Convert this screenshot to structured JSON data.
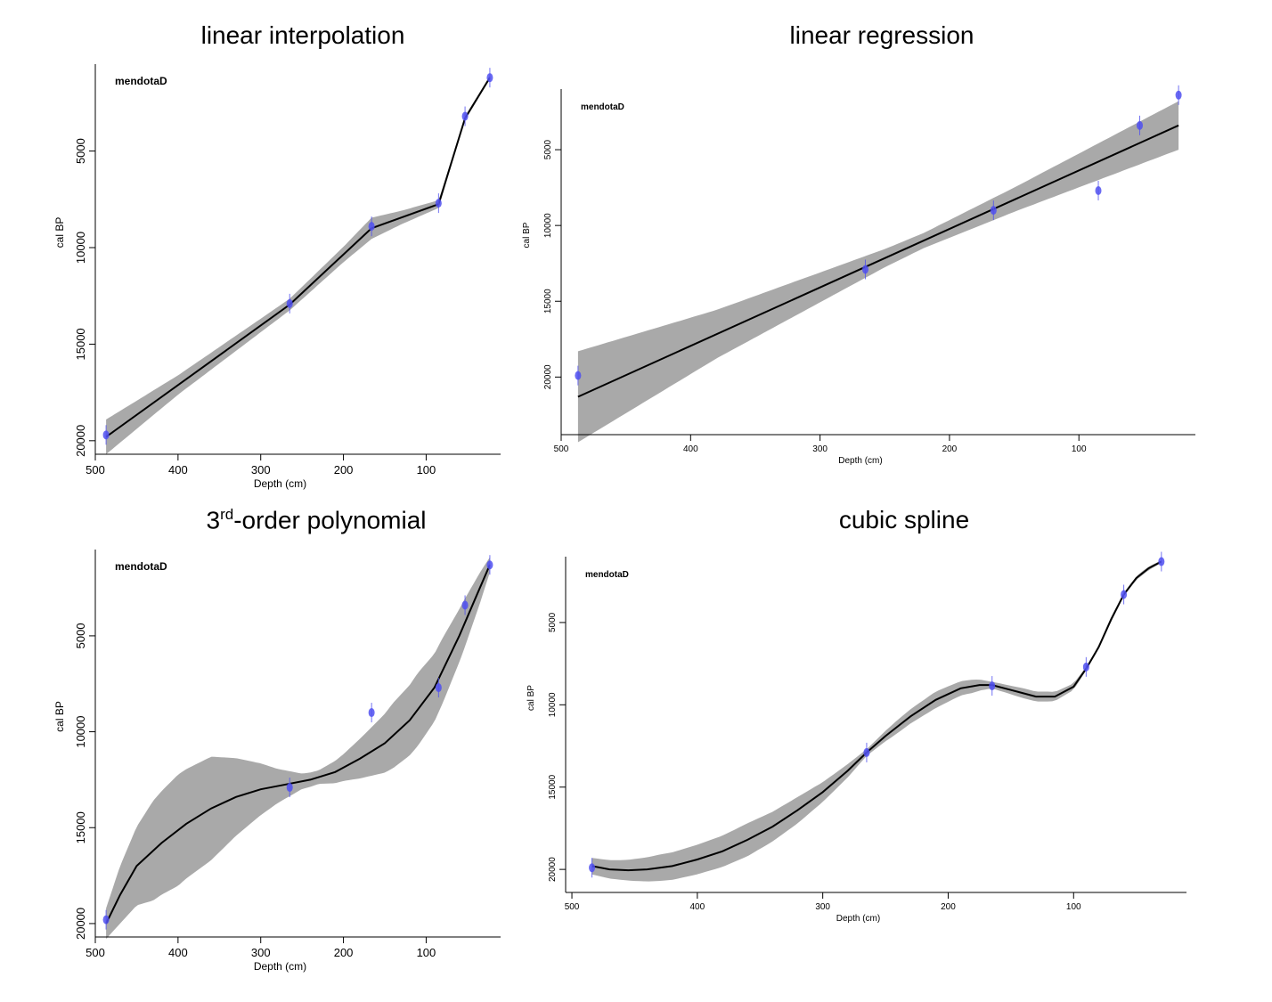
{
  "charts": {
    "titles": {
      "linear": "linear interpolation",
      "regression": "linear regression",
      "poly_num": "3",
      "poly_sup": "rd",
      "poly_rest": "-order polynomial",
      "spline": "cubic spline"
    }
  },
  "colors": {
    "band": "#a9a9a9",
    "line": "#000000",
    "date": "#5050f0"
  },
  "chart_data": [
    {
      "type": "line",
      "title": "linear interpolation",
      "label": "mendotaD",
      "xlabel": "Depth (cm)",
      "ylabel": "cal BP",
      "xlim": [
        500,
        10
      ],
      "ylim": [
        20700,
        500
      ],
      "x_ticks": [
        500,
        400,
        300,
        200,
        100
      ],
      "y_ticks": [
        5000,
        10000,
        15000,
        20000
      ],
      "dates": [
        {
          "depth": 487,
          "age": 19700
        },
        {
          "depth": 265,
          "age": 12900
        },
        {
          "depth": 166,
          "age": 8900
        },
        {
          "depth": 85,
          "age": 7700
        },
        {
          "depth": 53,
          "age": 3200
        },
        {
          "depth": 23,
          "age": 1200
        }
      ],
      "series": [
        {
          "values": [
            [
              487,
              19800
            ],
            [
              265,
              12950
            ],
            [
              166,
              9000
            ],
            [
              85,
              7750
            ],
            [
              53,
              3300
            ],
            [
              23,
              1200
            ]
          ]
        }
      ],
      "band": {
        "widths": [
          [
            487,
            900
          ],
          [
            400,
            500
          ],
          [
            300,
            350
          ],
          [
            265,
            300
          ],
          [
            200,
            400
          ],
          [
            166,
            550
          ],
          [
            130,
            350
          ],
          [
            85,
            200
          ],
          [
            60,
            120
          ],
          [
            23,
            80
          ]
        ]
      }
    },
    {
      "type": "line",
      "title": "linear regression",
      "label": "mendotaD",
      "xlabel": "Depth (cm)",
      "ylabel": "cal BP",
      "xlim": [
        500,
        10
      ],
      "ylim": [
        23800,
        1000
      ],
      "x_ticks": [
        500,
        400,
        300,
        200,
        100
      ],
      "y_ticks": [
        5000,
        10000,
        15000,
        20000
      ],
      "dates": [
        {
          "depth": 487,
          "age": 19900
        },
        {
          "depth": 265,
          "age": 12900
        },
        {
          "depth": 166,
          "age": 9000
        },
        {
          "depth": 85,
          "age": 7700
        },
        {
          "depth": 53,
          "age": 3400
        },
        {
          "depth": 23,
          "age": 1400
        }
      ],
      "series": [
        {
          "values": [
            [
              487,
              21300
            ],
            [
              23,
              3400
            ]
          ]
        }
      ],
      "band": {
        "widths": [
          [
            487,
            3000
          ],
          [
            380,
            1600
          ],
          [
            250,
            600
          ],
          [
            220,
            500
          ],
          [
            150,
            800
          ],
          [
            23,
            1600
          ]
        ]
      }
    },
    {
      "type": "line",
      "title": "3rd-order polynomial",
      "label": "mendotaD",
      "xlabel": "Depth (cm)",
      "ylabel": "cal BP",
      "xlim": [
        500,
        10
      ],
      "ylim": [
        20700,
        500
      ],
      "x_ticks": [
        500,
        400,
        300,
        200,
        100
      ],
      "y_ticks": [
        5000,
        10000,
        15000,
        20000
      ],
      "dates": [
        {
          "depth": 487,
          "age": 19800
        },
        {
          "depth": 265,
          "age": 12900
        },
        {
          "depth": 166,
          "age": 9000
        },
        {
          "depth": 85,
          "age": 7700
        },
        {
          "depth": 53,
          "age": 3400
        },
        {
          "depth": 23,
          "age": 1300
        }
      ],
      "series": [
        {
          "values": [
            [
              487,
              20000
            ],
            [
              470,
              18500
            ],
            [
              450,
              17000
            ],
            [
              420,
              15800
            ],
            [
              390,
              14800
            ],
            [
              360,
              14000
            ],
            [
              330,
              13400
            ],
            [
              300,
              13000
            ],
            [
              270,
              12750
            ],
            [
              240,
              12500
            ],
            [
              210,
              12100
            ],
            [
              180,
              11400
            ],
            [
              150,
              10600
            ],
            [
              120,
              9400
            ],
            [
              90,
              7700
            ],
            [
              60,
              5000
            ],
            [
              40,
              3000
            ],
            [
              23,
              1300
            ]
          ]
        }
      ],
      "band": {
        "widths": [
          [
            487,
            800
          ],
          [
            470,
            1500
          ],
          [
            430,
            2600
          ],
          [
            400,
            2900
          ],
          [
            360,
            2700
          ],
          [
            320,
            1800
          ],
          [
            280,
            900
          ],
          [
            250,
            400
          ],
          [
            230,
            350
          ],
          [
            200,
            700
          ],
          [
            170,
            1200
          ],
          [
            140,
            1700
          ],
          [
            110,
            1900
          ],
          [
            80,
            1700
          ],
          [
            55,
            1300
          ],
          [
            35,
            800
          ],
          [
            23,
            400
          ]
        ]
      }
    },
    {
      "type": "line",
      "title": "cubic spline",
      "label": "mendotaD",
      "xlabel": "Depth (cm)",
      "ylabel": "cal BP",
      "xlim": [
        505,
        10
      ],
      "ylim": [
        21400,
        1000
      ],
      "x_ticks": [
        500,
        400,
        300,
        200,
        100
      ],
      "y_ticks": [
        5000,
        10000,
        15000,
        20000
      ],
      "dates": [
        {
          "depth": 484,
          "age": 19900
        },
        {
          "depth": 265,
          "age": 12900
        },
        {
          "depth": 165,
          "age": 8850
        },
        {
          "depth": 90,
          "age": 7700
        },
        {
          "depth": 60,
          "age": 3300
        },
        {
          "depth": 30,
          "age": 1300
        }
      ],
      "series": [
        {
          "values": [
            [
              484,
              19800
            ],
            [
              470,
              20000
            ],
            [
              455,
              20050
            ],
            [
              440,
              20000
            ],
            [
              420,
              19800
            ],
            [
              400,
              19400
            ],
            [
              380,
              18900
            ],
            [
              360,
              18200
            ],
            [
              340,
              17400
            ],
            [
              320,
              16400
            ],
            [
              300,
              15300
            ],
            [
              280,
              14000
            ],
            [
              265,
              12900
            ],
            [
              250,
              11900
            ],
            [
              230,
              10700
            ],
            [
              210,
              9700
            ],
            [
              190,
              9000
            ],
            [
              175,
              8800
            ],
            [
              165,
              8800
            ],
            [
              150,
              9100
            ],
            [
              130,
              9500
            ],
            [
              115,
              9500
            ],
            [
              100,
              8900
            ],
            [
              90,
              7800
            ],
            [
              80,
              6500
            ],
            [
              70,
              4800
            ],
            [
              60,
              3300
            ],
            [
              50,
              2300
            ],
            [
              40,
              1700
            ],
            [
              30,
              1300
            ]
          ]
        }
      ],
      "band": {
        "widths": [
          [
            484,
            500
          ],
          [
            460,
            600
          ],
          [
            430,
            800
          ],
          [
            400,
            900
          ],
          [
            360,
            1000
          ],
          [
            320,
            800
          ],
          [
            280,
            400
          ],
          [
            265,
            200
          ],
          [
            240,
            400
          ],
          [
            210,
            500
          ],
          [
            180,
            400
          ],
          [
            165,
            200
          ],
          [
            140,
            300
          ],
          [
            120,
            300
          ],
          [
            100,
            200
          ],
          [
            90,
            100
          ],
          [
            70,
            150
          ],
          [
            60,
            100
          ],
          [
            45,
            120
          ],
          [
            30,
            80
          ]
        ]
      }
    }
  ]
}
